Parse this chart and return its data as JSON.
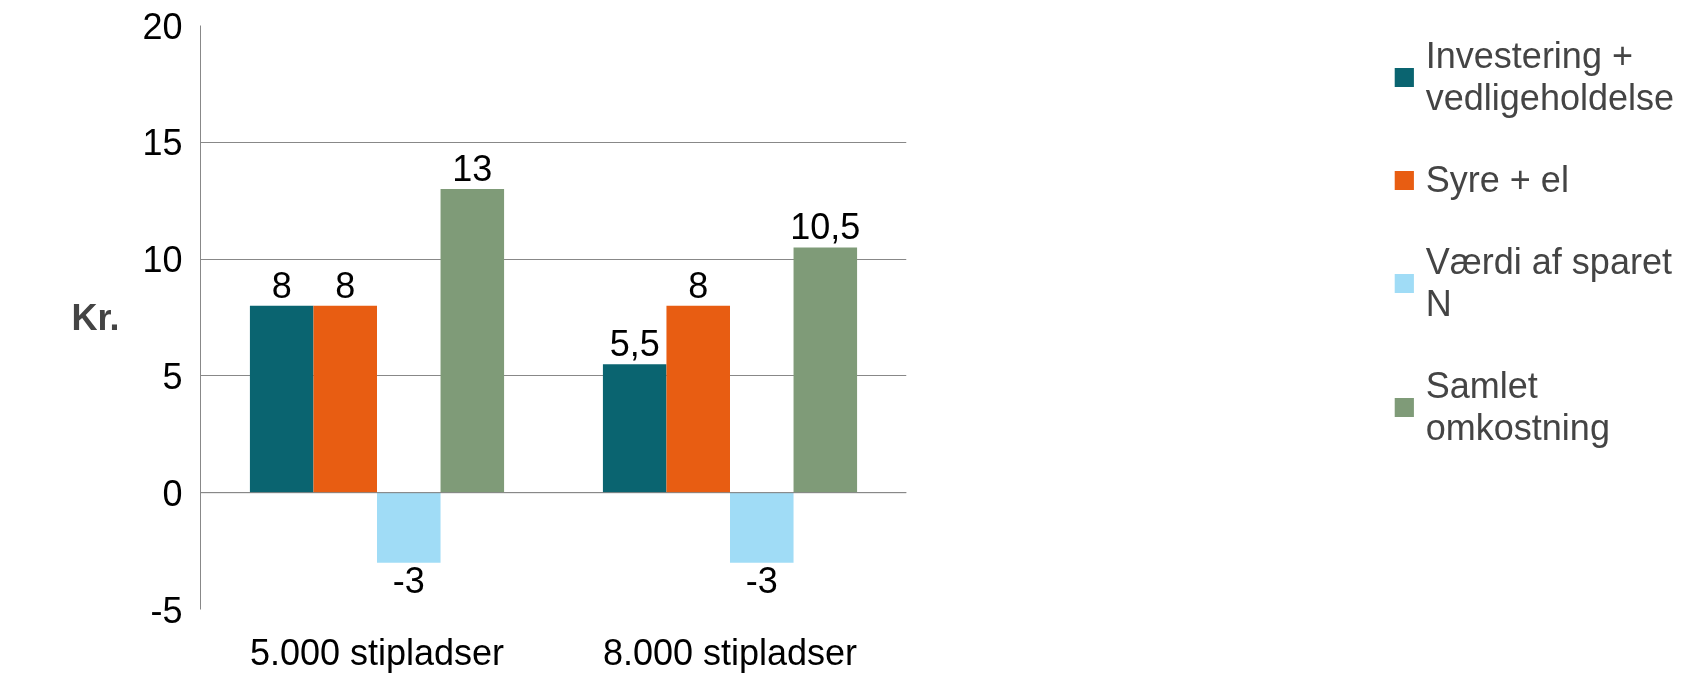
{
  "chart_data": {
    "type": "bar",
    "ylabel": "Kr.",
    "categories": [
      "5.000 stipladser",
      "8.000 stipladser"
    ],
    "series": [
      {
        "name": "Investering + vedligeholdelse",
        "color": "#0a6470",
        "values": [
          8,
          5.5
        ],
        "value_labels": [
          "8",
          "5,5"
        ]
      },
      {
        "name": "Syre + el",
        "color": "#e85d12",
        "values": [
          8,
          8
        ],
        "value_labels": [
          "8",
          "8"
        ]
      },
      {
        "name": "Værdi af sparet N",
        "color": "#a0dcf6",
        "values": [
          -3,
          -3
        ],
        "value_labels": [
          "-3",
          "-3"
        ]
      },
      {
        "name": "Samlet omkostning",
        "color": "#7f9b78",
        "values": [
          13,
          10.5
        ],
        "value_labels": [
          "13",
          "10,5"
        ]
      }
    ],
    "ylim": [
      -5,
      20
    ],
    "yticks": [
      -5,
      0,
      5,
      10,
      15,
      20
    ],
    "grid": "y",
    "legend": "right"
  }
}
